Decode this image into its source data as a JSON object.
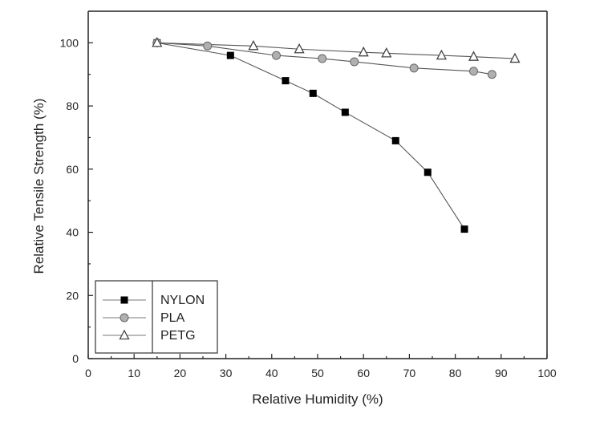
{
  "chart_data": {
    "type": "line",
    "title": "",
    "xlabel": "Relative Humidity (%)",
    "ylabel": "Relative Tensile Strength (%)",
    "xlim": [
      0,
      100
    ],
    "ylim": [
      0,
      110
    ],
    "xticks": [
      0,
      10,
      20,
      30,
      40,
      50,
      60,
      70,
      80,
      90,
      100
    ],
    "yticks": [
      0,
      20,
      40,
      60,
      80,
      100
    ],
    "grid": false,
    "legend_placement": "bottom-left",
    "series": [
      {
        "name": "NYLON",
        "marker": "filled-square",
        "color": "#000000",
        "x": [
          15,
          31,
          43,
          49,
          56,
          67,
          74,
          82
        ],
        "y": [
          100,
          96,
          88,
          84,
          78,
          69,
          59,
          41
        ]
      },
      {
        "name": "PLA",
        "marker": "gray-circle",
        "color": "#b0b0b0",
        "x": [
          15,
          26,
          41,
          51,
          58,
          71,
          84,
          88
        ],
        "y": [
          100,
          99,
          96,
          95,
          94,
          92,
          91,
          90
        ]
      },
      {
        "name": "PETG",
        "marker": "open-triangle",
        "color": "#ffffff",
        "x": [
          15,
          36,
          46,
          60,
          65,
          77,
          84,
          93
        ],
        "y": [
          100,
          99,
          98,
          97,
          96.7,
          96,
          95.6,
          95
        ]
      }
    ]
  }
}
